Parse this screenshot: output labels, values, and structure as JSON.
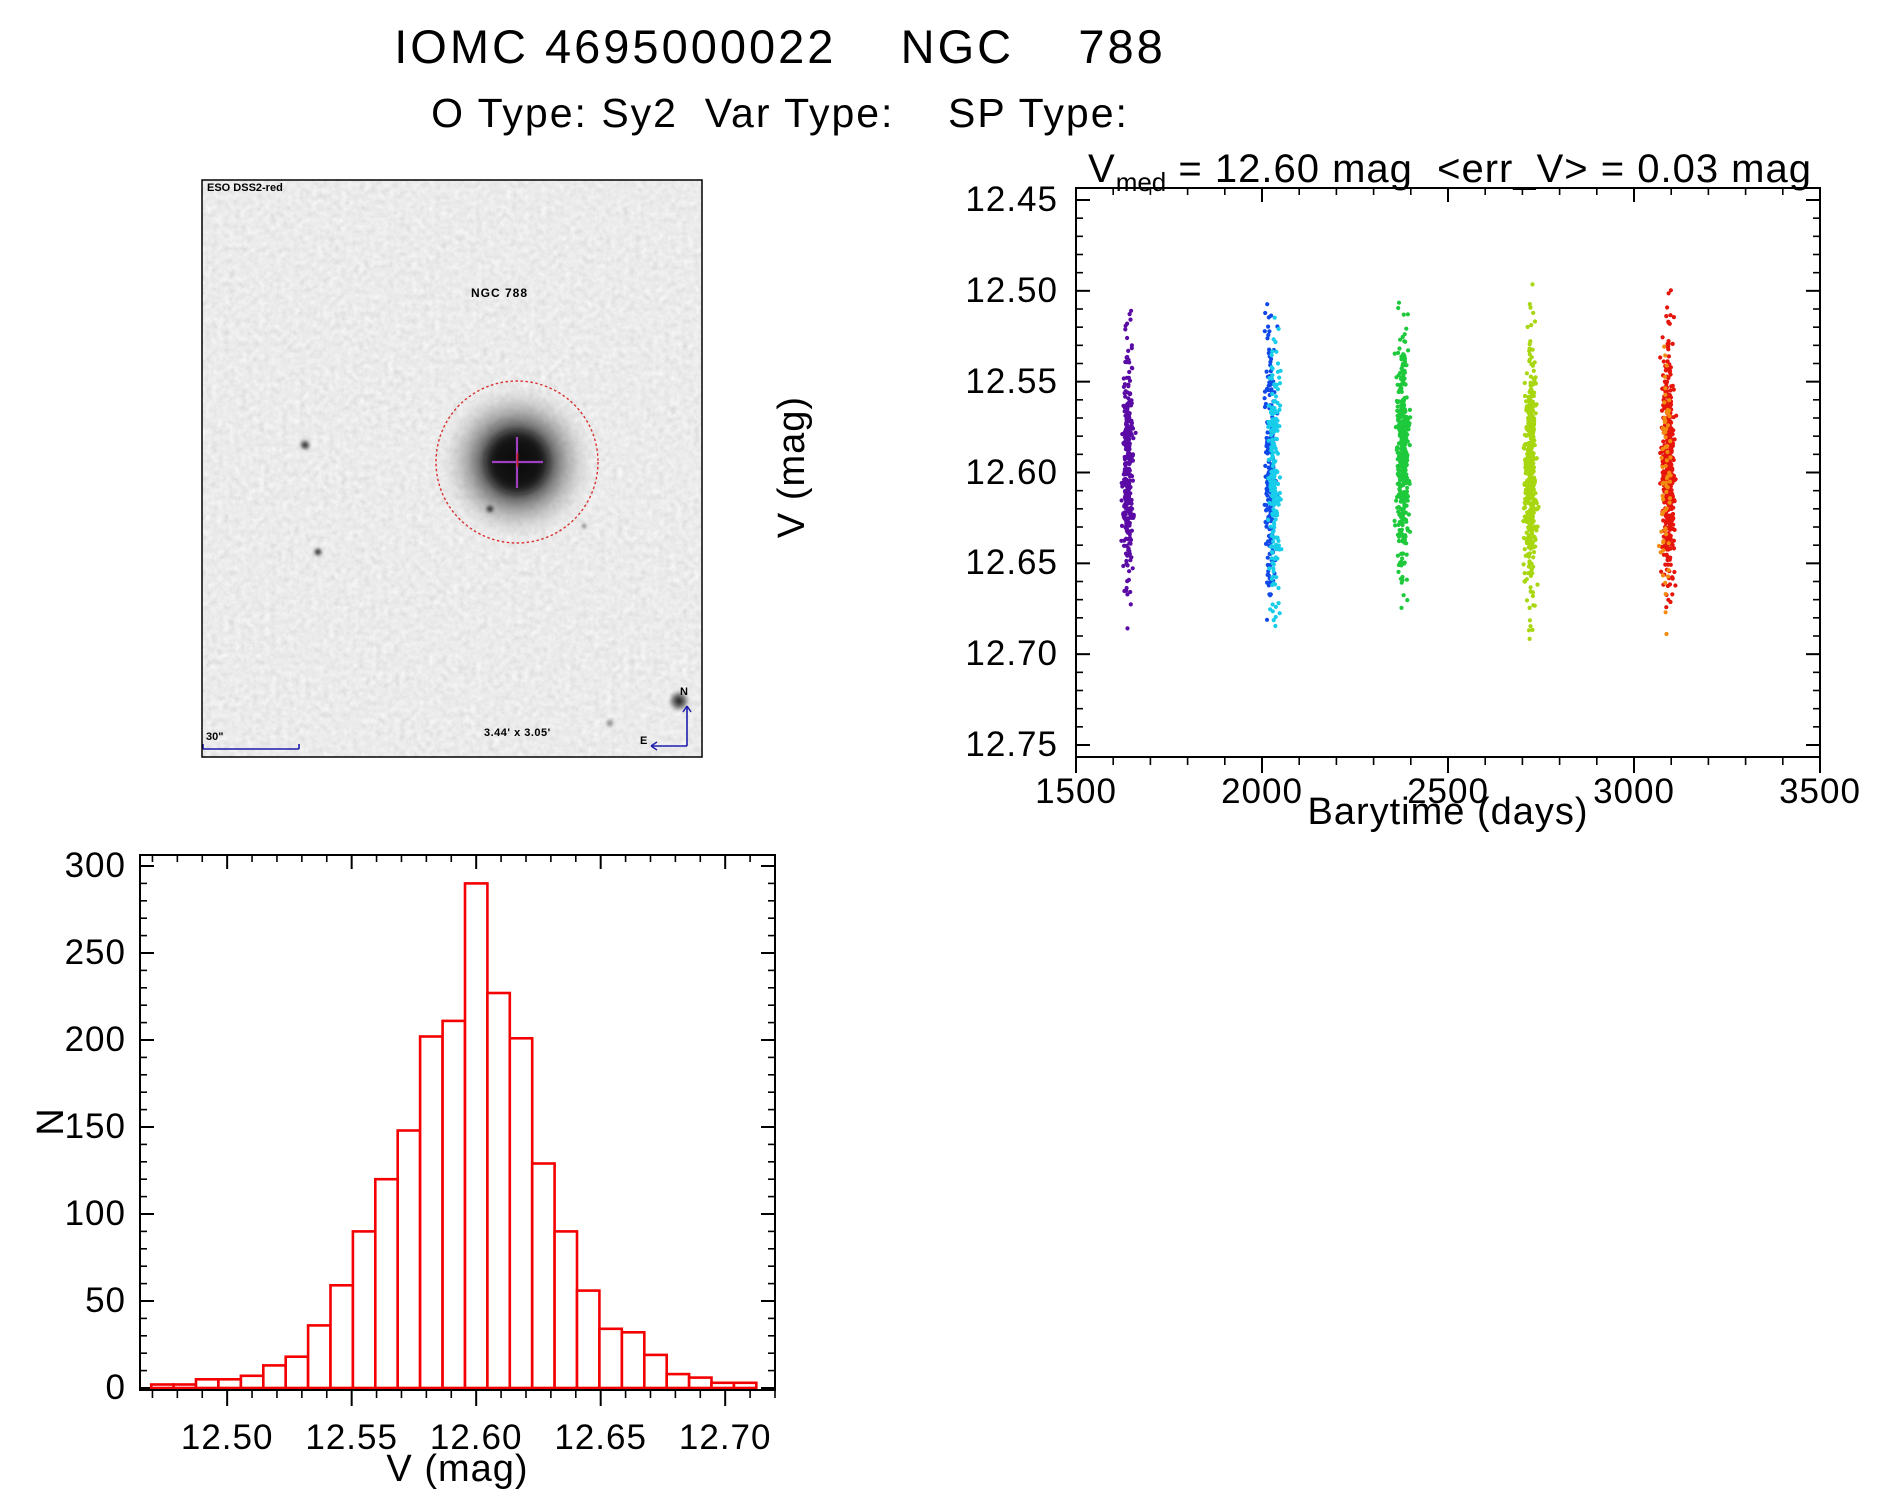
{
  "header": {
    "title": "IOMC 4695000022    NGC    788",
    "subtitle": "O Type: Sy2  Var Type:    SP Type:"
  },
  "finding_chart": {
    "survey_label": "ESO DSS2-red",
    "object_label": "NGC 788",
    "scale_bar_label": "30\"",
    "fov_label": "3.44' x 3.05'",
    "compass_north_label": "N",
    "compass_east_label": "E",
    "annotation_blue": "#1d1dad",
    "annotation_red": "#c42020",
    "circle_color": "#d93030",
    "cross_color": "#a03fc0"
  },
  "chart_data": [
    {
      "type": "scatter",
      "title_prefix": "V",
      "title_sub": "med",
      "title_rest": " = 12.60 mag  <err_V> = 0.03 mag",
      "v_med_mag": 12.6,
      "err_v_mag": 0.03,
      "xlabel": "Barytime (days)",
      "ylabel": "V (mag)",
      "xlim": [
        1500,
        3500
      ],
      "ylim_top": 12.45,
      "ylim_bottom": 12.75,
      "y_inverted": true,
      "grid": false,
      "xticks": {
        "major": [
          1500,
          2000,
          2500,
          3000,
          3500
        ],
        "labels": [
          "1500",
          "2000",
          "2500",
          "3000",
          "3500"
        ],
        "minor_step": 100
      },
      "yticks": {
        "major": [
          12.45,
          12.5,
          12.55,
          12.6,
          12.65,
          12.7,
          12.75
        ],
        "labels": [
          "12.45",
          "12.50",
          "12.55",
          "12.60",
          "12.65",
          "12.70",
          "12.75"
        ],
        "minor_step": 0.01
      },
      "v_clip": [
        12.473,
        12.709
      ],
      "series": [
        {
          "name": "epoch-1-violet",
          "color": "#5a0aa5",
          "day": 1640,
          "day_sigma": 2.5,
          "n": 320,
          "v_mean": 12.597,
          "v_sigma": 0.034
        },
        {
          "name": "epoch-2-blue",
          "color": "#1148e8",
          "day": 2022,
          "day_sigma": 2.5,
          "n": 230,
          "v_mean": 12.596,
          "v_sigma": 0.033
        },
        {
          "name": "epoch-2-cyan",
          "color": "#18cdea",
          "day": 2032,
          "day_sigma": 2.5,
          "n": 210,
          "v_mean": 12.6,
          "v_sigma": 0.035
        },
        {
          "name": "epoch-3-green",
          "color": "#1ec93b",
          "day": 2378,
          "day_sigma": 3.0,
          "n": 380,
          "v_mean": 12.594,
          "v_sigma": 0.033
        },
        {
          "name": "epoch-4-chartreuse",
          "color": "#a8d60f",
          "day": 2722,
          "day_sigma": 3.0,
          "n": 430,
          "v_mean": 12.598,
          "v_sigma": 0.035
        },
        {
          "name": "epoch-5-red",
          "color": "#e6150c",
          "day": 3092,
          "day_sigma": 3.0,
          "n": 470,
          "v_mean": 12.596,
          "v_sigma": 0.032
        },
        {
          "name": "epoch-5-orange",
          "color": "#f28c11",
          "day": 3085,
          "day_sigma": 2.5,
          "n": 70,
          "v_mean": 12.6,
          "v_sigma": 0.034
        }
      ]
    },
    {
      "type": "histogram",
      "xlabel": "V (mag)",
      "ylabel": "N",
      "bar_color": "#f50000",
      "xlim": [
        12.465,
        12.72
      ],
      "ylim": [
        0,
        300
      ],
      "bin_start": 12.4695,
      "bin_width": 0.009,
      "counts": [
        2,
        2,
        5,
        5,
        7,
        13,
        18,
        36,
        59,
        90,
        120,
        148,
        202,
        211,
        290,
        227,
        201,
        129,
        90,
        56,
        34,
        32,
        19,
        8,
        6,
        3,
        3
      ],
      "xticks": {
        "major": [
          12.5,
          12.55,
          12.6,
          12.65,
          12.7
        ],
        "labels": [
          "12.50",
          "12.55",
          "12.60",
          "12.65",
          "12.70"
        ],
        "minor_step": 0.01
      },
      "yticks": {
        "major": [
          0,
          50,
          100,
          150,
          200,
          250,
          300
        ],
        "labels": [
          "0",
          "50",
          "100",
          "150",
          "200",
          "250",
          "300"
        ],
        "minor_step": 10
      }
    }
  ]
}
